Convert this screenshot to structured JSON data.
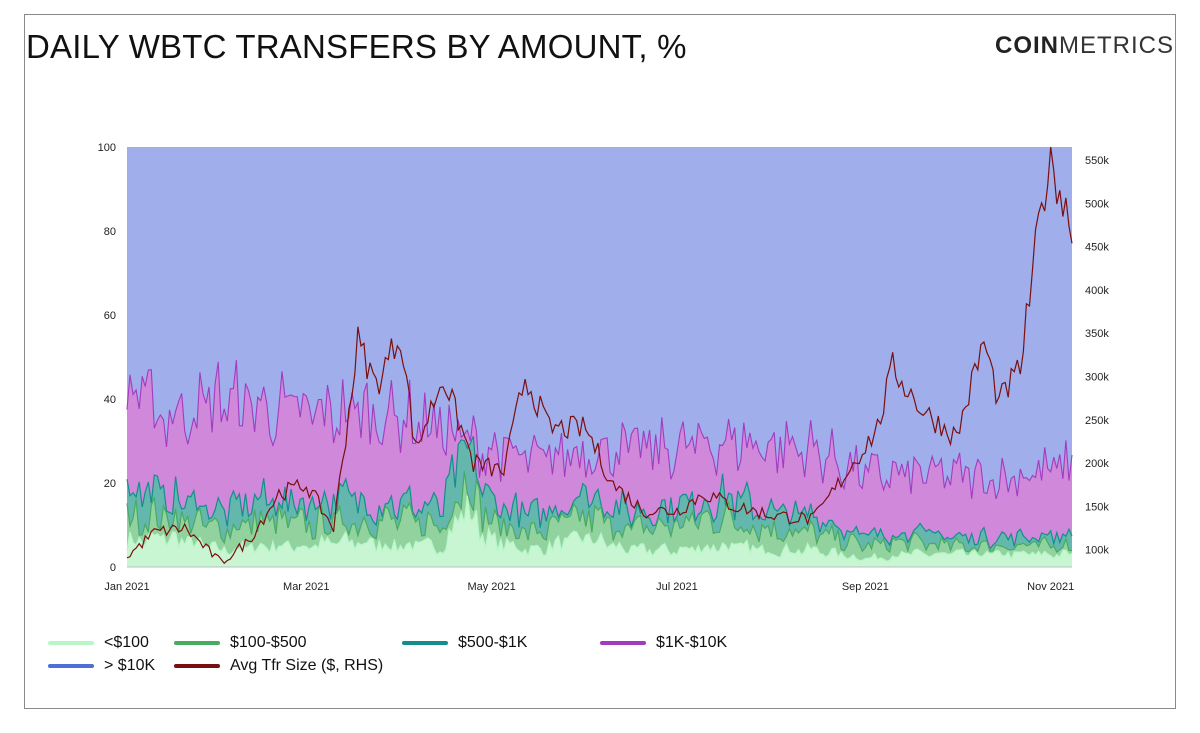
{
  "header": {
    "title": "DAILY WBTC TRANSFERS BY AMOUNT, %",
    "logo_bold": "COIN",
    "logo_light": "METRICS"
  },
  "colors": {
    "lt100": "#b6f7c8",
    "r100_500": "#49ab5f",
    "r500_1k": "#128f8c",
    "r1k_10k": "#a23bc0",
    "gt10k": "#4f6fd8",
    "avg": "#7a0f0f",
    "fill_lt100": "#c8f5d2",
    "fill_100_500": "#92d29e",
    "fill_500_1k": "#64b7ac",
    "fill_1k_10k": "#cf88da",
    "fill_gt10k": "#a0aeeb"
  },
  "legend": [
    {
      "label": "<$100",
      "color": "#b6f7c8"
    },
    {
      "label": "$100-$500",
      "color": "#49ab5f"
    },
    {
      "label": "$500-$1K",
      "color": "#128f8c"
    },
    {
      "label": "$1K-$10K",
      "color": "#a23bc0"
    },
    {
      "label": "> $10K",
      "color": "#4f6fd8"
    },
    {
      "label": "Avg Tfr Size ($, RHS)",
      "color": "#7a0f0f"
    }
  ],
  "chart_data": {
    "type": "area",
    "stacked": true,
    "x_start": "2021-01-01",
    "x_end": "2021-11-08",
    "xticks": [
      "Jan 2021",
      "Mar 2021",
      "May 2021",
      "Jul 2021",
      "Sep 2021",
      "Nov 2021"
    ],
    "ylim": [
      0,
      100
    ],
    "yticks": [
      "0",
      "20",
      "40",
      "60",
      "80",
      "100"
    ],
    "y2ticks": [
      "100k",
      "150k",
      "200k",
      "250k",
      "300k",
      "350k",
      "400k",
      "450k",
      "500k",
      "550k"
    ],
    "y2lim": [
      80000,
      565000
    ],
    "series": [
      {
        "name": "<$100",
        "cumulative_top": {
          "2021-01-01": 6,
          "2021-01-15": 7,
          "2021-02-01": 4,
          "2021-02-15": 5,
          "2021-03-01": 5,
          "2021-03-15": 6,
          "2021-04-01": 5,
          "2021-04-15": 5,
          "2021-04-22": 14,
          "2021-05-01": 6,
          "2021-05-15": 4,
          "2021-06-01": 7,
          "2021-06-15": 4,
          "2021-07-01": 4,
          "2021-07-15": 5,
          "2021-08-01": 4,
          "2021-08-15": 4,
          "2021-09-01": 2,
          "2021-09-15": 3,
          "2021-10-01": 3,
          "2021-10-15": 3,
          "2021-11-08": 3
        }
      },
      {
        "name": "$100-$500",
        "cumulative_top": {
          "2021-01-01": 12,
          "2021-01-15": 12,
          "2021-02-01": 9,
          "2021-02-15": 11,
          "2021-03-01": 10,
          "2021-03-15": 11,
          "2021-04-01": 11,
          "2021-04-15": 10,
          "2021-04-22": 22,
          "2021-05-01": 10,
          "2021-05-15": 8,
          "2021-06-01": 12,
          "2021-06-15": 9,
          "2021-07-01": 10,
          "2021-07-15": 12,
          "2021-08-01": 9,
          "2021-08-15": 8,
          "2021-09-01": 5,
          "2021-09-15": 6,
          "2021-10-01": 5,
          "2021-10-15": 5,
          "2021-11-08": 5
        }
      },
      {
        "name": "$500-$1K",
        "cumulative_top": {
          "2021-01-01": 19,
          "2021-01-15": 16,
          "2021-02-01": 13,
          "2021-02-15": 16,
          "2021-03-01": 15,
          "2021-03-15": 16,
          "2021-04-01": 15,
          "2021-04-15": 14,
          "2021-04-22": 28,
          "2021-05-01": 15,
          "2021-05-15": 12,
          "2021-06-01": 17,
          "2021-06-15": 13,
          "2021-07-01": 14,
          "2021-07-15": 17,
          "2021-08-01": 13,
          "2021-08-15": 12,
          "2021-09-01": 7,
          "2021-09-15": 8,
          "2021-10-01": 7,
          "2021-10-15": 7,
          "2021-11-08": 7
        }
      },
      {
        "name": "$1K-$10K",
        "cumulative_top": {
          "2021-01-01": 42,
          "2021-01-15": 36,
          "2021-02-01": 40,
          "2021-02-15": 38,
          "2021-03-01": 36,
          "2021-03-15": 37,
          "2021-04-01": 36,
          "2021-04-15": 33,
          "2021-04-22": 30,
          "2021-05-01": 28,
          "2021-05-15": 25,
          "2021-06-01": 28,
          "2021-06-15": 28,
          "2021-07-01": 28,
          "2021-07-15": 30,
          "2021-08-01": 29,
          "2021-08-15": 28,
          "2021-09-01": 22,
          "2021-09-15": 22,
          "2021-10-01": 22,
          "2021-10-15": 21,
          "2021-11-08": 24
        }
      },
      {
        "name": "> $10K",
        "cumulative_top": {
          "2021-01-01": 100,
          "2021-11-08": 100
        }
      },
      {
        "name": "Avg Tfr Size ($, RHS)",
        "axis": "right",
        "values": {
          "2021-01-01": 92000,
          "2021-01-10": 120000,
          "2021-01-20": 125000,
          "2021-02-01": 85000,
          "2021-02-10": 110000,
          "2021-02-20": 165000,
          "2021-03-01": 175000,
          "2021-03-10": 125000,
          "2021-03-18": 340000,
          "2021-03-24": 290000,
          "2021-04-01": 350000,
          "2021-04-06": 215000,
          "2021-04-15": 300000,
          "2021-04-25": 200000,
          "2021-05-05": 190000,
          "2021-05-12": 300000,
          "2021-05-20": 240000,
          "2021-06-01": 240000,
          "2021-06-10": 175000,
          "2021-06-20": 145000,
          "2021-07-01": 145000,
          "2021-07-10": 165000,
          "2021-07-20": 150000,
          "2021-08-01": 140000,
          "2021-08-15": 135000,
          "2021-08-25": 185000,
          "2021-09-05": 240000,
          "2021-09-10": 310000,
          "2021-09-20": 260000,
          "2021-10-01": 230000,
          "2021-10-10": 340000,
          "2021-10-15": 270000,
          "2021-10-22": 310000,
          "2021-10-28": 470000,
          "2021-11-01": 562000,
          "2021-11-05": 500000,
          "2021-11-08": 480000
        }
      }
    ],
    "grid": false,
    "legend_position": "bottom-left"
  }
}
